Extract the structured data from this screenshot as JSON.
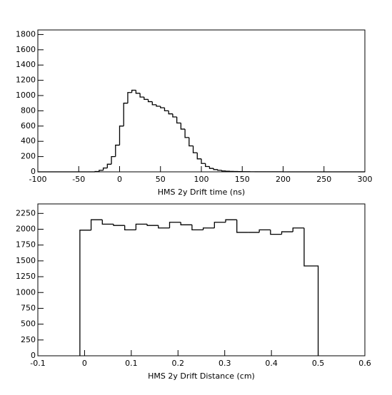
{
  "chart_data": [
    {
      "type": "histogram",
      "x_label": "HMS 2y Drift time (ns)",
      "bins": [
        -100,
        -95,
        -90,
        -85,
        -80,
        -75,
        -70,
        -65,
        -60,
        -55,
        -50,
        -45,
        -40,
        -35,
        -30,
        -25,
        -20,
        -15,
        -10,
        -5,
        0,
        5,
        10,
        15,
        20,
        25,
        30,
        35,
        40,
        45,
        50,
        55,
        60,
        65,
        70,
        75,
        80,
        85,
        90,
        95,
        100,
        105,
        110,
        115,
        120,
        125,
        130,
        135,
        140,
        145,
        150,
        155,
        160,
        165,
        170,
        175,
        180,
        185,
        190,
        195,
        200,
        205,
        210,
        215,
        220,
        225,
        230,
        235,
        240,
        245,
        250,
        255,
        260,
        265,
        270,
        275,
        280,
        285,
        290,
        295,
        300
      ],
      "values": [
        0,
        0,
        0,
        0,
        0,
        0,
        0,
        0,
        0,
        0,
        0,
        0,
        0,
        0,
        5,
        20,
        50,
        100,
        200,
        350,
        600,
        900,
        1040,
        1070,
        1030,
        980,
        950,
        920,
        880,
        860,
        840,
        800,
        760,
        720,
        640,
        560,
        450,
        340,
        250,
        170,
        110,
        70,
        45,
        30,
        20,
        12,
        8,
        6,
        4,
        3,
        2,
        2,
        1,
        1,
        1,
        1,
        1,
        1,
        1,
        1,
        0,
        0,
        0,
        0,
        0,
        0,
        0,
        0,
        0,
        0,
        0,
        0,
        0,
        0,
        0,
        0,
        0,
        0,
        0,
        0
      ],
      "color": "#000000",
      "xlim": [
        -100,
        300
      ],
      "xticks": [
        -100,
        -50,
        0,
        50,
        100,
        150,
        200,
        250,
        300
      ],
      "ylim": [
        0,
        1860
      ],
      "yticks": [
        0,
        200,
        400,
        600,
        800,
        1000,
        1200,
        1400,
        1600,
        1800
      ]
    },
    {
      "type": "histogram",
      "x_label": "HMS 2y Drift Distance (cm)",
      "bins": [
        -0.01,
        0.014,
        0.038,
        0.062,
        0.086,
        0.11,
        0.134,
        0.158,
        0.182,
        0.206,
        0.23,
        0.254,
        0.278,
        0.302,
        0.326,
        0.35,
        0.374,
        0.398,
        0.422,
        0.446,
        0.47,
        0.5
      ],
      "values": [
        1985,
        2150,
        2080,
        2060,
        1990,
        2080,
        2060,
        2020,
        2110,
        2070,
        1990,
        2020,
        2110,
        2150,
        1950,
        1950,
        1990,
        1920,
        1960,
        2020,
        1420
      ],
      "color": "#000000",
      "xlim": [
        -0.1,
        0.6
      ],
      "xticks": [
        -0.1,
        0,
        0.1,
        0.2,
        0.3,
        0.4,
        0.5,
        0.6
      ],
      "ylim": [
        0,
        2400
      ],
      "yticks": [
        0,
        250,
        500,
        750,
        1000,
        1250,
        1500,
        1750,
        2000,
        2250
      ]
    }
  ]
}
